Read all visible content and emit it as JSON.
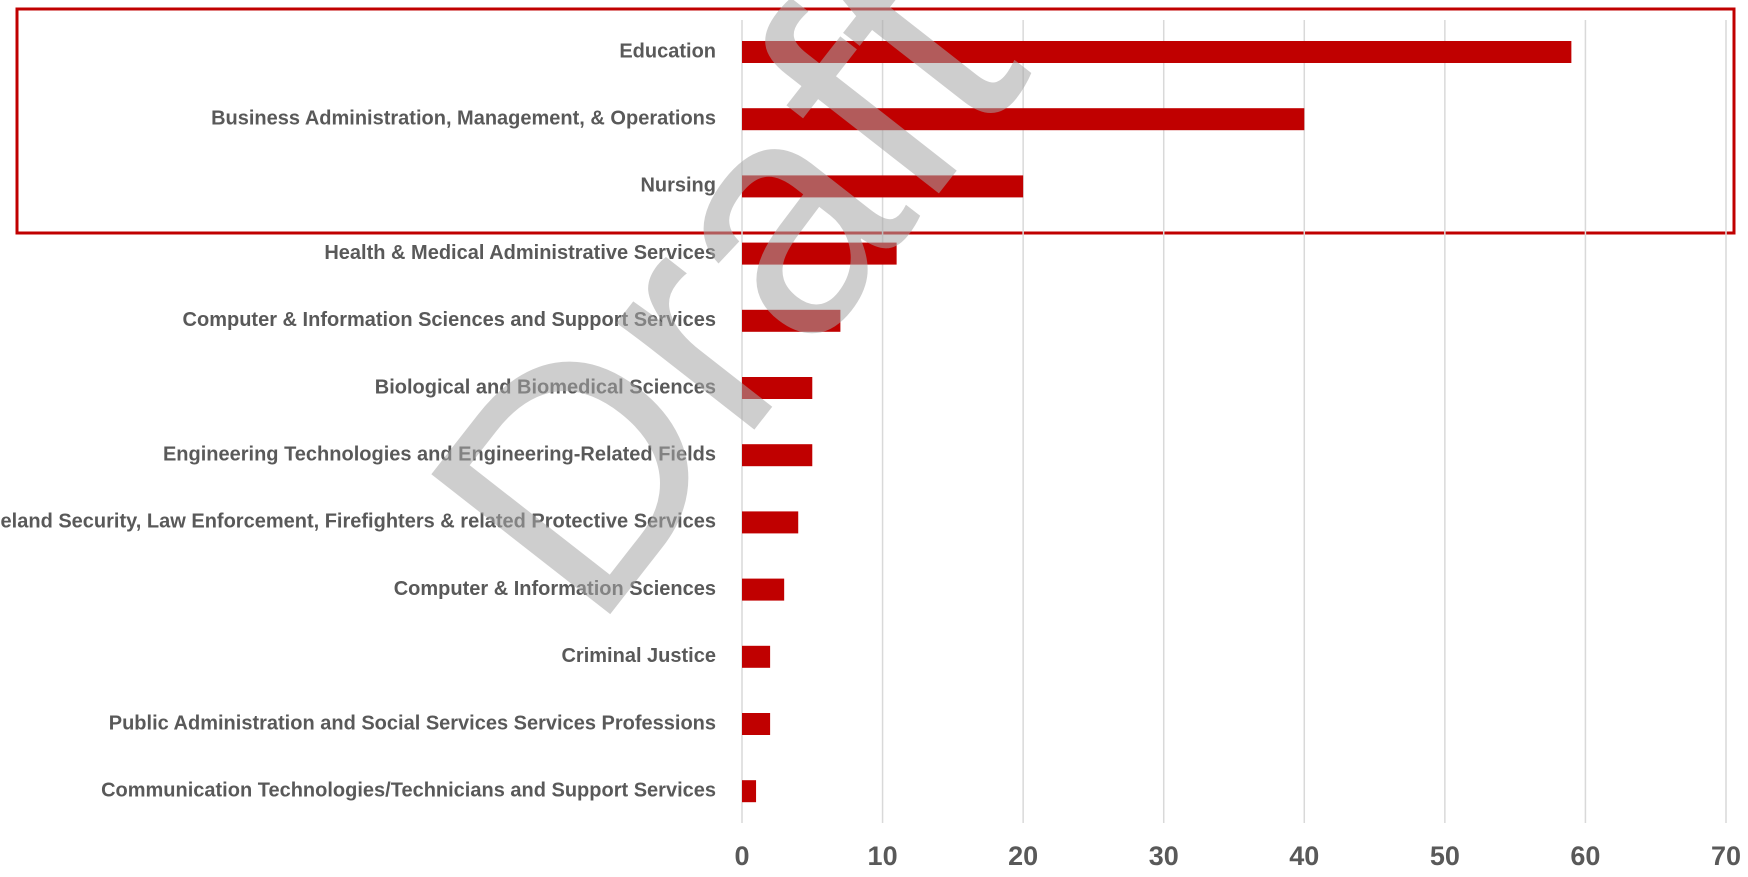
{
  "chart_data": {
    "type": "bar",
    "orientation": "horizontal",
    "categories": [
      "Education",
      "Business Administration, Management, & Operations",
      "Nursing",
      "Health & Medical Administrative Services",
      "Computer & Information Sciences and Support Services",
      "Biological and Biomedical Sciences",
      "Engineering Technologies and Engineering-Related Fields",
      "Homeland Security, Law Enforcement, Firefighters & related Protective Services",
      "Computer & Information Sciences",
      "Criminal Justice",
      "Public Administration and Social Services Services Professions",
      "Communication Technologies/Technicians and Support Services"
    ],
    "values": [
      59,
      40,
      20,
      11,
      7,
      5,
      5,
      4,
      3,
      2,
      2,
      1
    ],
    "color": "#c00000",
    "xlim": [
      0,
      70
    ],
    "xticks": [
      0,
      10,
      20,
      30,
      40,
      50,
      60,
      70
    ],
    "grid": true,
    "watermark": "Draft"
  }
}
